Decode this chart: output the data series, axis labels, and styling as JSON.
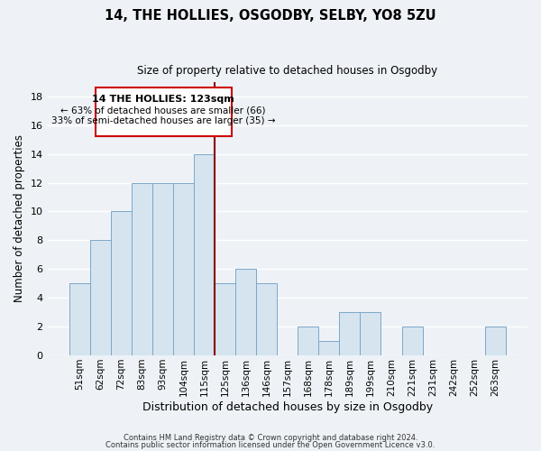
{
  "title": "14, THE HOLLIES, OSGODBY, SELBY, YO8 5ZU",
  "subtitle": "Size of property relative to detached houses in Osgodby",
  "xlabel": "Distribution of detached houses by size in Osgodby",
  "ylabel": "Number of detached properties",
  "bar_color": "#d6e4f0",
  "bar_edge_color": "#7ba7c8",
  "categories": [
    "51sqm",
    "62sqm",
    "72sqm",
    "83sqm",
    "93sqm",
    "104sqm",
    "115sqm",
    "125sqm",
    "136sqm",
    "146sqm",
    "157sqm",
    "168sqm",
    "178sqm",
    "189sqm",
    "199sqm",
    "210sqm",
    "221sqm",
    "231sqm",
    "242sqm",
    "252sqm",
    "263sqm"
  ],
  "values": [
    5,
    8,
    10,
    12,
    12,
    12,
    14,
    5,
    6,
    5,
    0,
    2,
    1,
    3,
    3,
    0,
    2,
    0,
    0,
    0,
    2
  ],
  "marker_between_index": 6,
  "marker_color": "#8b0000",
  "ylim": [
    0,
    19
  ],
  "yticks": [
    0,
    2,
    4,
    6,
    8,
    10,
    12,
    14,
    16,
    18
  ],
  "annotation_title": "14 THE HOLLIES: 123sqm",
  "annotation_line1": "← 63% of detached houses are smaller (66)",
  "annotation_line2": "33% of semi-detached houses are larger (35) →",
  "footer1": "Contains HM Land Registry data © Crown copyright and database right 2024.",
  "footer2": "Contains public sector information licensed under the Open Government Licence v3.0.",
  "background_color": "#eef2f7",
  "grid_color": "#ffffff",
  "box_color": "#cc0000"
}
